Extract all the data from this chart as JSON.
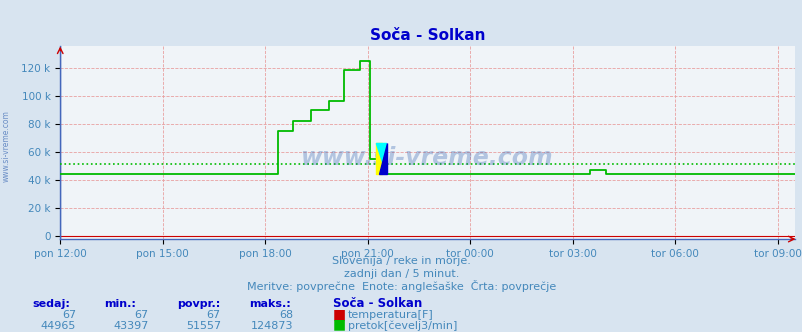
{
  "title": "Soča - Solkan",
  "bg_color": "#d8e4f0",
  "plot_bg_color": "#f0f4f8",
  "line_color_flow": "#00bb00",
  "avg_flow_color": "#00bb00",
  "title_color": "#0000cc",
  "tick_label_color": "#4488bb",
  "subtitle_color": "#4488bb",
  "label_color": "#0000cc",
  "watermark_color": "#2255aa",
  "flow_avg": 51557,
  "flow_min": 43397,
  "flow_max": 124873,
  "yticks": [
    0,
    20000,
    40000,
    60000,
    80000,
    100000,
    120000
  ],
  "ytick_labels": [
    "0",
    "20 k",
    "40 k",
    "60 k",
    "80 k",
    "100 k",
    "120 k"
  ],
  "xtick_labels": [
    "pon 12:00",
    "pon 15:00",
    "pon 18:00",
    "pon 21:00",
    "tor 00:00",
    "tor 03:00",
    "tor 06:00",
    "tor 09:00"
  ],
  "subtitle1": "Slovenija / reke in morje.",
  "subtitle2": "zadnji dan / 5 minut.",
  "subtitle3": "Meritve: povprečne  Enote: anglešaške  Črta: povprečje",
  "footer_headers": [
    "sedaj:",
    "min.:",
    "povpr.:",
    "maks.:"
  ],
  "footer_station": "Soča - Solkan",
  "footer_temp": [
    "67",
    "67",
    "67",
    "68"
  ],
  "footer_flow": [
    "44965",
    "43397",
    "51557",
    "124873"
  ],
  "footer_temp_label": "temperatura[F]",
  "footer_flow_label": "pretok[čevelj3/min]"
}
